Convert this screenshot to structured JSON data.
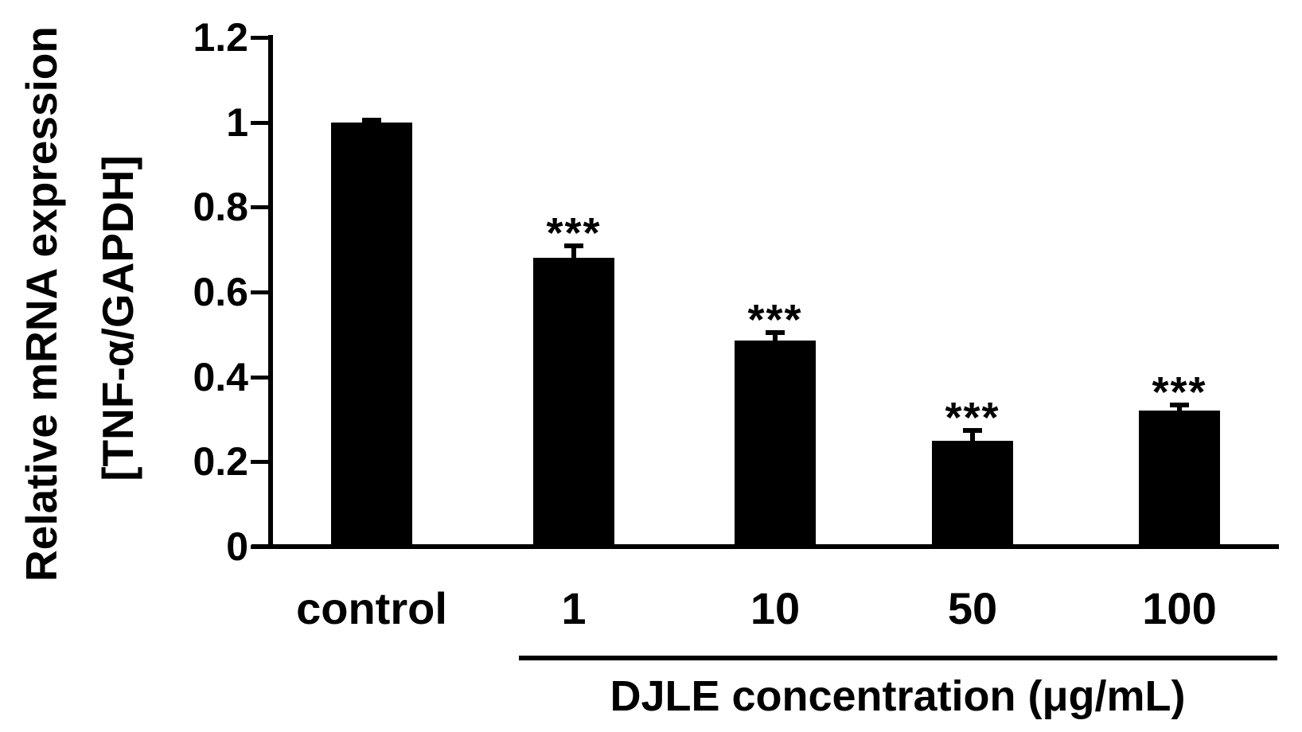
{
  "figure": {
    "y_axis_title_line1": "Relative mRNA expression",
    "y_axis_title_line2": "[TNF-α/GAPDH]",
    "group_axis_label": "DJLE concentration (μg/mL)"
  },
  "chart_data": {
    "type": "bar",
    "title": "",
    "ylabel": "Relative mRNA expression [TNF-α/GAPDH]",
    "xlabel": "DJLE concentration (μg/mL)",
    "categories": [
      "control",
      "1",
      "10",
      "50",
      "100"
    ],
    "values": [
      1.0,
      0.68,
      0.485,
      0.25,
      0.32
    ],
    "errors": [
      0.01,
      0.035,
      0.025,
      0.03,
      0.02
    ],
    "significance": [
      "",
      "***",
      "***",
      "***",
      "***"
    ],
    "categories_under_group_line": [
      "1",
      "10",
      "50",
      "100"
    ],
    "ylim": [
      0,
      1.2
    ],
    "yticks": [
      0,
      0.2,
      0.4,
      0.6,
      0.8,
      1,
      1.2
    ],
    "ytick_labels": [
      "0",
      "0.2",
      "0.4",
      "0.6",
      "0.8",
      "1",
      "1.2"
    ],
    "bar_color": "#000000",
    "axis_color": "#000000",
    "background": "#ffffff",
    "grid": false,
    "legend": false,
    "error_bars": "upper only",
    "bar_orientation": "vertical"
  }
}
